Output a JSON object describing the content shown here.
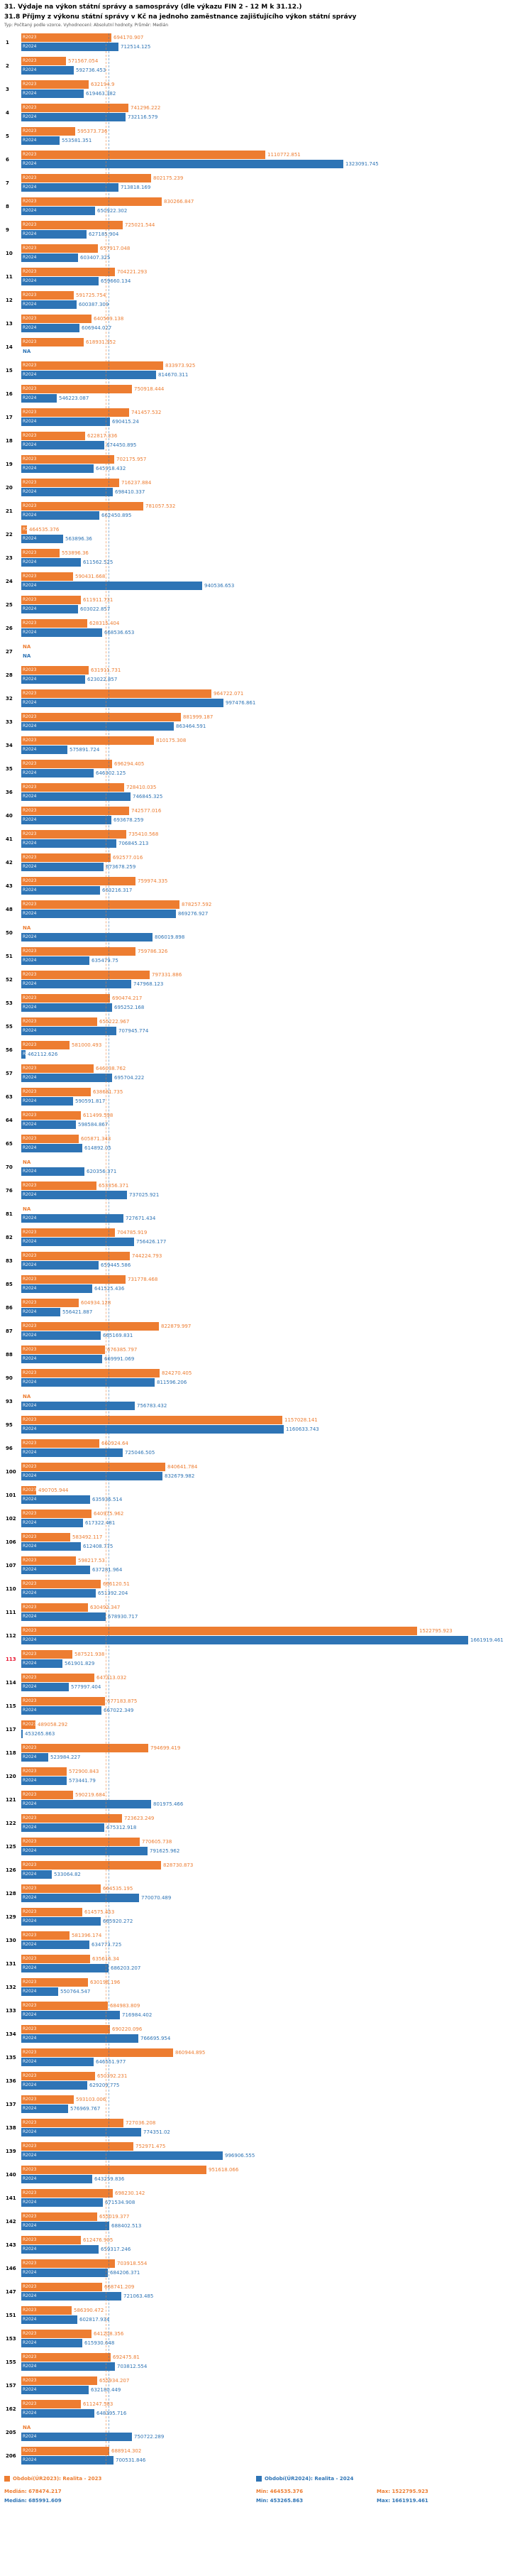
{
  "header": {
    "title": "31. Výdaje na výkon státní správy a samosprávy (dle výkazu FIN 2 - 12 M k 31.12.)",
    "subtitle": "31.8 Příjmy z výkonu státní správy v Kč na jednoho zaměstnance zajišťujícího výkon státní správy",
    "note": "Typ: Počítaný podle vzorce. Vyhodnocení: Absolutní hodnoty. Průměr: Medián"
  },
  "colors": {
    "y2023": "#ED7D31",
    "y2024": "#2E74B5",
    "highlight_row": "#e8112d"
  },
  "legend": {
    "items": [
      {
        "label": "Období(ÚR2023): Realita - 2023",
        "color": "#ED7D31"
      },
      {
        "label": "Období(ÚR2024): Realita - 2024",
        "color": "#2E74B5"
      }
    ]
  },
  "stats": {
    "rows": [
      {
        "median": "Medián: 678474.217",
        "min": "Min: 464535.376",
        "max": "Max: 1522795.923"
      },
      {
        "median": "Medián: 685991.609",
        "min": "Min: 453265.863",
        "max": "Max: 1661919.461"
      }
    ]
  },
  "chart_data": {
    "type": "bar",
    "orientation": "horizontal",
    "title": "31.8 Příjmy z výkonu státní správy v Kč na jednoho zaměstnance zajišťujícího výkon státní správy",
    "series": [
      "R2023",
      "R2024"
    ],
    "na_label": "NA",
    "axis": {
      "min": 450000,
      "max": 1700000
    },
    "medians": {
      "R2023": 678474.217,
      "R2024": 685991.609
    },
    "rows": [
      {
        "id": 1,
        "R2023": 694170.907,
        "R2024": 712514.125
      },
      {
        "id": 2,
        "R2023": 571567.054,
        "R2024": 592736.453
      },
      {
        "id": 3,
        "R2023": 632194.9,
        "R2024": 619463.382
      },
      {
        "id": 4,
        "R2023": 741296.222,
        "R2024": 732116.579
      },
      {
        "id": 5,
        "R2023": 595373.736,
        "R2024": 553581.351
      },
      {
        "id": 6,
        "R2023": 1110772.851,
        "R2024": 1323091.745
      },
      {
        "id": 7,
        "R2023": 802175.239,
        "R2024": 713818.169
      },
      {
        "id": 8,
        "R2023": 830266.847,
        "R2024": 650922.302
      },
      {
        "id": 9,
        "R2023": 725021.544,
        "R2024": 627185.904
      },
      {
        "id": 10,
        "R2023": 657917.048,
        "R2024": 603407.325
      },
      {
        "id": 11,
        "R2023": 704221.293,
        "R2024": 659660.134
      },
      {
        "id": 12,
        "R2023": 591725.754,
        "R2024": 600387.309
      },
      {
        "id": 13,
        "R2023": 640569.138,
        "R2024": 606944.027
      },
      {
        "id": 14,
        "R2023": 618931.952,
        "R2024": null
      },
      {
        "id": 15,
        "R2023": 833973.925,
        "R2024": 814670.311
      },
      {
        "id": 16,
        "R2023": 750918.444,
        "R2024": 546223.087
      },
      {
        "id": 17,
        "R2023": 741457.532,
        "R2024": 690415.24
      },
      {
        "id": 18,
        "R2023": 622817.336,
        "R2024": 674450.895
      },
      {
        "id": 19,
        "R2023": 702175.957,
        "R2024": 645918.432
      },
      {
        "id": 20,
        "R2023": 716237.884,
        "R2024": 698410.337
      },
      {
        "id": 21,
        "R2023": 781057.532,
        "R2024": 662450.895
      },
      {
        "id": 22,
        "R2023": 464535.376,
        "R2024": 563896.36
      },
      {
        "id": 23,
        "R2023": 553896.36,
        "R2024": 611562.525
      },
      {
        "id": 24,
        "R2023": 590431.668,
        "R2024": 940536.653
      },
      {
        "id": 25,
        "R2023": 611911.731,
        "R2024": 603022.857
      },
      {
        "id": 26,
        "R2023": 628315.404,
        "R2024": 668536.653
      },
      {
        "id": 27,
        "R2023": null,
        "R2024": null
      },
      {
        "id": 28,
        "R2023": 631911.731,
        "R2024": 623022.857
      },
      {
        "id": 32,
        "R2023": 964722.071,
        "R2024": 997476.861
      },
      {
        "id": 33,
        "R2023": 881999.187,
        "R2024": 863464.591
      },
      {
        "id": 34,
        "R2023": 810175.308,
        "R2024": 575891.724
      },
      {
        "id": 35,
        "R2023": 696294.405,
        "R2024": 646302.125
      },
      {
        "id": 36,
        "R2023": 728410.035,
        "R2024": 746845.325
      },
      {
        "id": 40,
        "R2023": 742577.016,
        "R2024": 693678.259
      },
      {
        "id": 41,
        "R2023": 735410.568,
        "R2024": 706845.213
      },
      {
        "id": 42,
        "R2023": 692577.016,
        "R2024": 673678.259
      },
      {
        "id": 43,
        "R2023": 759974.335,
        "R2024": 663216.317
      },
      {
        "id": 48,
        "R2023": 878257.592,
        "R2024": 869276.927
      },
      {
        "id": 50,
        "R2023": null,
        "R2024": 806019.898
      },
      {
        "id": 51,
        "R2023": 759786.326,
        "R2024": 635479.75
      },
      {
        "id": 52,
        "R2023": 797331.886,
        "R2024": 747968.123
      },
      {
        "id": 53,
        "R2023": 690474.217,
        "R2024": 695252.168
      },
      {
        "id": 55,
        "R2023": 655222.967,
        "R2024": 707945.774
      },
      {
        "id": 56,
        "R2023": 581000.493,
        "R2024": 462112.626
      },
      {
        "id": 57,
        "R2023": 646038.762,
        "R2024": 695704.222
      },
      {
        "id": 63,
        "R2023": 638681.735,
        "R2024": 590591.817
      },
      {
        "id": 64,
        "R2023": 611499.598,
        "R2024": 598584.867
      },
      {
        "id": 65,
        "R2023": 605871.343,
        "R2024": 614892.05
      },
      {
        "id": 70,
        "R2023": null,
        "R2024": 620356.371
      },
      {
        "id": 76,
        "R2023": 653356.371,
        "R2024": 737025.921
      },
      {
        "id": 81,
        "R2023": null,
        "R2024": 727671.434
      },
      {
        "id": 82,
        "R2023": 704785.919,
        "R2024": 756426.177
      },
      {
        "id": 83,
        "R2023": 744224.793,
        "R2024": 659445.586
      },
      {
        "id": 85,
        "R2023": 731778.468,
        "R2024": 641525.436
      },
      {
        "id": 86,
        "R2023": 604934.128,
        "R2024": 556421.887
      },
      {
        "id": 87,
        "R2023": 822879.997,
        "R2024": 665169.831
      },
      {
        "id": 88,
        "R2023": 676385.797,
        "R2024": 669991.069
      },
      {
        "id": 90,
        "R2023": 824270.405,
        "R2024": 811596.206
      },
      {
        "id": 93,
        "R2023": null,
        "R2024": 756783.432
      },
      {
        "id": 95,
        "R2023": 1157028.141,
        "R2024": 1160633.743
      },
      {
        "id": 96,
        "R2023": 660924.64,
        "R2024": 725046.505
      },
      {
        "id": 100,
        "R2023": 840641.784,
        "R2024": 832679.982
      },
      {
        "id": 101,
        "R2023": 490705.944,
        "R2024": 635936.514
      },
      {
        "id": 102,
        "R2023": 640975.962,
        "R2024": 617322.481
      },
      {
        "id": 106,
        "R2023": 583492.117,
        "R2024": 612408.775
      },
      {
        "id": 107,
        "R2023": 598217.53,
        "R2024": 637281.964
      },
      {
        "id": 110,
        "R2023": 666120.51,
        "R2024": 651392.204
      },
      {
        "id": 111,
        "R2023": 630492.347,
        "R2024": 678930.717
      },
      {
        "id": 112,
        "R2023": 1522795.923,
        "R2024": 1661919.461
      },
      {
        "id": 113,
        "R2023": 587521.938,
        "R2024": 561901.829,
        "highlight": true
      },
      {
        "id": 114,
        "R2023": 647313.032,
        "R2024": 577997.404
      },
      {
        "id": 115,
        "R2023": 677183.875,
        "R2024": 667022.349
      },
      {
        "id": 117,
        "R2023": 489058.292,
        "R2024": 453265.863
      },
      {
        "id": 118,
        "R2023": 794699.419,
        "R2024": 523984.227
      },
      {
        "id": 120,
        "R2023": 572900.843,
        "R2024": 573441.79
      },
      {
        "id": 121,
        "R2023": 590219.684,
        "R2024": 801975.466
      },
      {
        "id": 122,
        "R2023": 723623.249,
        "R2024": 675312.918
      },
      {
        "id": 125,
        "R2023": 770605.738,
        "R2024": 791625.962
      },
      {
        "id": 126,
        "R2023": 828730.873,
        "R2024": 533064.82
      },
      {
        "id": 128,
        "R2023": 664535.195,
        "R2024": 770070.489
      },
      {
        "id": 129,
        "R2023": 614575.453,
        "R2024": 665920.272
      },
      {
        "id": 130,
        "R2023": 581396.174,
        "R2024": 634773.725
      },
      {
        "id": 131,
        "R2023": 635616.34,
        "R2024": 686203.207
      },
      {
        "id": 132,
        "R2023": 630196.196,
        "R2024": 550764.547
      },
      {
        "id": 133,
        "R2023": 684983.809,
        "R2024": 716984.402
      },
      {
        "id": 134,
        "R2023": 690220.096,
        "R2024": 766695.954
      },
      {
        "id": 135,
        "R2023": 860944.895,
        "R2024": 646551.977
      },
      {
        "id": 136,
        "R2023": 650392.231,
        "R2024": 629209.775
      },
      {
        "id": 137,
        "R2023": 593103.006,
        "R2024": 576969.767
      },
      {
        "id": 138,
        "R2023": 727036.208,
        "R2024": 774351.02
      },
      {
        "id": 139,
        "R2023": 752971.475,
        "R2024": 996906.555
      },
      {
        "id": 140,
        "R2023": 951618.066,
        "R2024": 643259.836
      },
      {
        "id": 141,
        "R2023": 698230.142,
        "R2024": 671534.908
      },
      {
        "id": 142,
        "R2023": 655019.377,
        "R2024": 688402.513
      },
      {
        "id": 143,
        "R2023": 612476.905,
        "R2024": 659317.246
      },
      {
        "id": 146,
        "R2023": 703918.554,
        "R2024": 684206.371
      },
      {
        "id": 147,
        "R2023": 668741.209,
        "R2024": 721063.485
      },
      {
        "id": 151,
        "R2023": 586390.472,
        "R2024": 602817.934
      },
      {
        "id": 153,
        "R2023": 641208.356,
        "R2024": 615930.648
      },
      {
        "id": 155,
        "R2023": 692475.81,
        "R2024": 703812.554
      },
      {
        "id": 157,
        "R2023": 655934.207,
        "R2024": 632180.449
      },
      {
        "id": 162,
        "R2023": 611247.583,
        "R2024": 648395.716
      },
      {
        "id": 205,
        "R2023": null,
        "R2024": 750722.289
      },
      {
        "id": 206,
        "R2023": 688914.302,
        "R2024": 700531.846
      }
    ]
  }
}
